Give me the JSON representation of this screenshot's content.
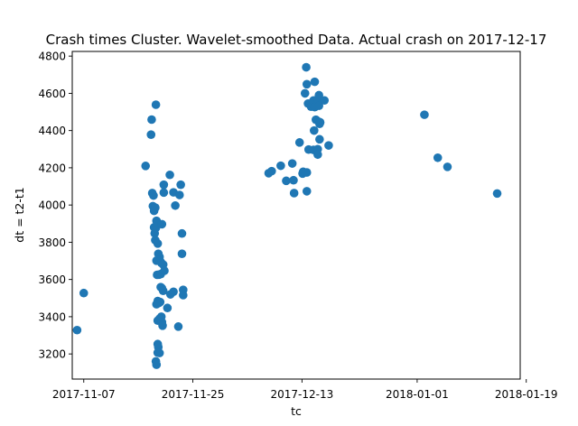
{
  "chart_data": {
    "type": "scatter",
    "title": "Crash times Cluster. Wavelet-smoothed Data. Actual crash on 2017-12-17",
    "xlabel": "tc",
    "ylabel": "dt = t2-t1",
    "x_unit": "days since 2017-11-07",
    "xlim": [
      -1.9,
      72.0
    ],
    "ylim": [
      3065,
      4825
    ],
    "x_ticks": [
      {
        "value": 0,
        "label": "2017-11-07"
      },
      {
        "value": 18,
        "label": "2017-11-25"
      },
      {
        "value": 36,
        "label": "2017-12-13"
      },
      {
        "value": 55,
        "label": "2018-01-01"
      },
      {
        "value": 73,
        "label": "2018-01-19"
      }
    ],
    "y_ticks": [
      3200,
      3400,
      3600,
      3800,
      4000,
      4200,
      4400,
      4600,
      4800
    ],
    "color": "#1f77b4",
    "series": [
      {
        "name": "crash times",
        "points": [
          [
            -1.1,
            3328
          ],
          [
            0.0,
            3527
          ],
          [
            10.2,
            4210
          ],
          [
            11.2,
            4459
          ],
          [
            11.1,
            4378
          ],
          [
            11.3,
            4064
          ],
          [
            11.5,
            4051
          ],
          [
            11.4,
            3994
          ],
          [
            11.7,
            3983
          ],
          [
            11.6,
            3969
          ],
          [
            11.9,
            4539
          ],
          [
            11.8,
            3986
          ],
          [
            11.6,
            3880
          ],
          [
            11.7,
            3848
          ],
          [
            11.8,
            3811
          ],
          [
            11.9,
            3878
          ],
          [
            12.0,
            3915
          ],
          [
            12.1,
            3906
          ],
          [
            12.2,
            3793
          ],
          [
            12.0,
            3701
          ],
          [
            12.1,
            3625
          ],
          [
            12.3,
            3738
          ],
          [
            12.5,
            3721
          ],
          [
            12.2,
            3705
          ],
          [
            12.6,
            3698
          ],
          [
            12.8,
            3689
          ],
          [
            13.1,
            3680
          ],
          [
            12.4,
            3626
          ],
          [
            12.7,
            3629
          ],
          [
            13.3,
            3647
          ],
          [
            12.7,
            3559
          ],
          [
            12.9,
            3553
          ],
          [
            13.1,
            3539
          ],
          [
            12.2,
            3484
          ],
          [
            12.4,
            3474
          ],
          [
            12.6,
            3479
          ],
          [
            12.0,
            3467
          ],
          [
            12.8,
            3400
          ],
          [
            12.2,
            3379
          ],
          [
            12.5,
            3389
          ],
          [
            12.9,
            3371
          ],
          [
            13.0,
            3352
          ],
          [
            12.2,
            3253
          ],
          [
            12.3,
            3237
          ],
          [
            12.5,
            3205
          ],
          [
            12.2,
            3207
          ],
          [
            11.9,
            3160
          ],
          [
            12.0,
            3142
          ],
          [
            12.9,
            3897
          ],
          [
            13.2,
            4109
          ],
          [
            13.2,
            4067
          ],
          [
            14.2,
            4162
          ],
          [
            14.8,
            4068
          ],
          [
            15.1,
            3997
          ],
          [
            15.8,
            4054
          ],
          [
            16.0,
            4109
          ],
          [
            16.2,
            3847
          ],
          [
            16.2,
            3738
          ],
          [
            16.4,
            3544
          ],
          [
            16.4,
            3516
          ],
          [
            14.8,
            3534
          ],
          [
            14.3,
            3520
          ],
          [
            13.8,
            3447
          ],
          [
            15.6,
            3347
          ],
          [
            30.5,
            4171
          ],
          [
            31.0,
            4182
          ],
          [
            32.5,
            4211
          ],
          [
            33.4,
            4130
          ],
          [
            34.4,
            4223
          ],
          [
            34.6,
            4133
          ],
          [
            34.7,
            4064
          ],
          [
            35.6,
            4336
          ],
          [
            36.2,
            4179
          ],
          [
            36.1,
            4169
          ],
          [
            36.8,
            4175
          ],
          [
            36.8,
            4074
          ],
          [
            36.5,
            4600
          ],
          [
            36.8,
            4649
          ],
          [
            36.7,
            4740
          ],
          [
            37.0,
            4545
          ],
          [
            37.1,
            4298
          ],
          [
            37.5,
            4528
          ],
          [
            37.9,
            4296
          ],
          [
            37.9,
            4562
          ],
          [
            38.0,
            4400
          ],
          [
            38.1,
            4526
          ],
          [
            38.1,
            4662
          ],
          [
            38.3,
            4458
          ],
          [
            38.6,
            4568
          ],
          [
            38.6,
            4300
          ],
          [
            38.6,
            4271
          ],
          [
            38.8,
            4590
          ],
          [
            38.8,
            4533
          ],
          [
            38.8,
            4447
          ],
          [
            38.9,
            4436
          ],
          [
            38.9,
            4353
          ],
          [
            39.0,
            4444
          ],
          [
            39.7,
            4562
          ],
          [
            40.4,
            4320
          ],
          [
            56.2,
            4485
          ],
          [
            58.4,
            4254
          ],
          [
            60.0,
            4205
          ],
          [
            68.2,
            4062
          ]
        ]
      }
    ]
  }
}
